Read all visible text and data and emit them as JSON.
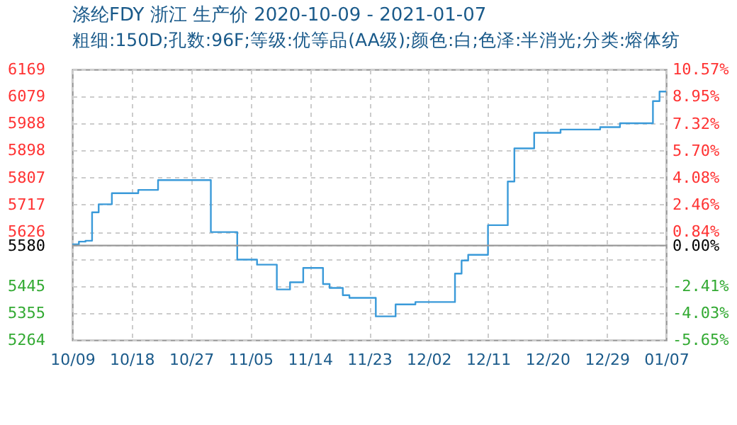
{
  "chart_data": {
    "type": "step",
    "title": "涤纶FDY 浙江 生产价 2020-10-09 - 2021-01-07",
    "subtitle": "粗细:150D;孔数:96F;等级:优等品(AA级);颜色:白;色泽:半消光;分类:熔体纺",
    "x": [
      "2020-10-09",
      "2020-10-10",
      "2020-10-11",
      "2020-10-12",
      "2020-10-13",
      "2020-10-15",
      "2020-10-18",
      "2020-10-19",
      "2020-10-21",
      "2020-10-22",
      "2020-10-29",
      "2020-10-30",
      "2020-11-01",
      "2020-11-03",
      "2020-11-05",
      "2020-11-06",
      "2020-11-08",
      "2020-11-09",
      "2020-11-10",
      "2020-11-11",
      "2020-11-12",
      "2020-11-13",
      "2020-11-15",
      "2020-11-16",
      "2020-11-17",
      "2020-11-18",
      "2020-11-19",
      "2020-11-20",
      "2020-11-23",
      "2020-11-24",
      "2020-11-26",
      "2020-11-27",
      "2020-11-30",
      "2020-12-05",
      "2020-12-06",
      "2020-12-07",
      "2020-12-08",
      "2020-12-09",
      "2020-12-11",
      "2020-12-13",
      "2020-12-14",
      "2020-12-15",
      "2020-12-17",
      "2020-12-18",
      "2020-12-21",
      "2020-12-22",
      "2020-12-28",
      "2020-12-30",
      "2020-12-31",
      "2021-01-03",
      "2021-01-05",
      "2021-01-06",
      "2021-01-07"
    ],
    "series": [
      {
        "color": "#3a9ad9",
        "values": [
          5584,
          5593,
          5596,
          5691,
          5718,
          5755,
          5755,
          5766,
          5766,
          5799,
          5799,
          5625,
          5625,
          5533,
          5533,
          5516,
          5516,
          5433,
          5433,
          5457,
          5457,
          5505,
          5505,
          5451,
          5438,
          5438,
          5414,
          5405,
          5405,
          5343,
          5343,
          5383,
          5391,
          5391,
          5486,
          5530,
          5549,
          5549,
          5648,
          5648,
          5794,
          5905,
          5905,
          5957,
          5957,
          5968,
          5976,
          5976,
          5989,
          5989,
          6063,
          6095,
          6095
        ]
      }
    ],
    "xlim": [
      "2020-10-09",
      "2021-01-07"
    ],
    "xticks": [
      {
        "value": "2020-10-09",
        "label": "10/09"
      },
      {
        "value": "2020-10-18",
        "label": "10/18"
      },
      {
        "value": "2020-10-27",
        "label": "10/27"
      },
      {
        "value": "2020-11-05",
        "label": "11/05"
      },
      {
        "value": "2020-11-14",
        "label": "11/14"
      },
      {
        "value": "2020-11-23",
        "label": "11/23"
      },
      {
        "value": "2020-12-02",
        "label": "12/02"
      },
      {
        "value": "2020-12-11",
        "label": "12/11"
      },
      {
        "value": "2020-12-20",
        "label": "12/20"
      },
      {
        "value": "2020-12-29",
        "label": "12/29"
      },
      {
        "value": "2021-01-07",
        "label": "01/07"
      }
    ],
    "ylim": [
      5264,
      6169
    ],
    "yticks": [
      6169,
      6079,
      5988,
      5898,
      5807,
      5717,
      5626,
      5580,
      {
        "value": 5536,
        "label": null
      },
      5445,
      5355,
      5264
    ],
    "y2lim": [
      -5.65,
      10.57
    ],
    "y2ticks": [
      {
        "value": 10.57,
        "label": "10.57%"
      },
      {
        "value": 8.95,
        "label": "8.95%"
      },
      {
        "value": 7.32,
        "label": "7.32%"
      },
      {
        "value": 5.7,
        "label": "5.70%"
      },
      {
        "value": 4.08,
        "label": "4.08%"
      },
      {
        "value": 2.46,
        "label": "2.46%"
      },
      {
        "value": 0.84,
        "label": "0.84%"
      },
      {
        "value": 0,
        "label": "0.00%"
      },
      {
        "value": -2.41,
        "label": "-2.41%"
      },
      {
        "value": -4.03,
        "label": "-4.03%"
      },
      {
        "value": -5.65,
        "label": "-5.65%"
      }
    ],
    "ref_lines": [
      {
        "axis": "y",
        "value": 5580,
        "color": "#999999"
      }
    ],
    "grid": true
  }
}
